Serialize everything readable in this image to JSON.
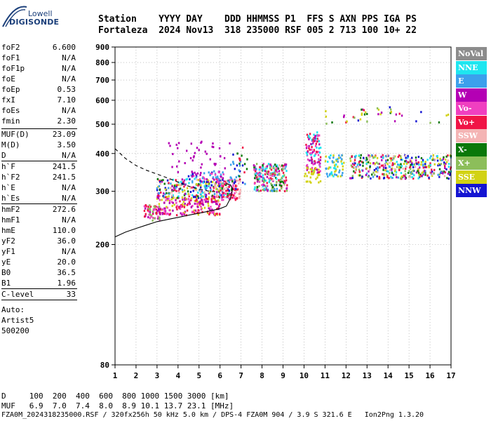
{
  "logo": {
    "top_text": "Lowell",
    "bottom_text": "DIGISONDE"
  },
  "header": {
    "line1": "Station    YYYY DAY    DDD HHMMSS P1  FFS S AXN PPS IGA PS",
    "line2": "Fortaleza  2024 Nov13  318 235000 RSF 005 2 713 100 10+ 22"
  },
  "parameters": {
    "group1": [
      {
        "name": "foF2",
        "value": "6.600"
      },
      {
        "name": "foF1",
        "value": "N/A"
      },
      {
        "name": "foF1p",
        "value": "N/A"
      },
      {
        "name": "foE",
        "value": "N/A"
      },
      {
        "name": "foEp",
        "value": "0.53"
      },
      {
        "name": "fxI",
        "value": "7.10"
      },
      {
        "name": "foEs",
        "value": "N/A"
      },
      {
        "name": "fmin",
        "value": "2.30"
      }
    ],
    "group2": [
      {
        "name": "MUF(D)",
        "value": "23.09"
      },
      {
        "name": "M(D)",
        "value": "3.50"
      },
      {
        "name": "D",
        "value": "N/A"
      }
    ],
    "group3": [
      {
        "name": "h`F",
        "value": "241.5"
      },
      {
        "name": "h`F2",
        "value": "241.5"
      },
      {
        "name": "h`E",
        "value": "N/A"
      },
      {
        "name": "h`Es",
        "value": "N/A"
      }
    ],
    "group4": [
      {
        "name": "hmF2",
        "value": "272.6"
      },
      {
        "name": "hmF1",
        "value": "N/A"
      },
      {
        "name": "hmE",
        "value": "110.0"
      },
      {
        "name": "yF2",
        "value": "36.0"
      },
      {
        "name": "yF1",
        "value": "N/A"
      },
      {
        "name": "yE",
        "value": "20.0"
      },
      {
        "name": "B0",
        "value": "36.5"
      },
      {
        "name": "B1",
        "value": "1.96"
      }
    ],
    "group5": [
      {
        "name": "C-level",
        "value": "33"
      }
    ],
    "autoscale": {
      "line1": "Auto:",
      "line2": "Artist5",
      "line3": "500200"
    }
  },
  "legend": [
    {
      "label": "NoVal",
      "bg": "#8c8c8c",
      "fg": "#ffffff"
    },
    {
      "label": "NNE",
      "bg": "#1ee6f0",
      "fg": "#ffffff"
    },
    {
      "label": "E",
      "bg": "#3ca0ec",
      "fg": "#ffffff"
    },
    {
      "label": "W",
      "bg": "#b400b4",
      "fg": "#ffffff"
    },
    {
      "label": "Vo-",
      "bg": "#f040c0",
      "fg": "#ffffff"
    },
    {
      "label": "Vo+",
      "bg": "#f01446",
      "fg": "#ffffff"
    },
    {
      "label": "SSW",
      "bg": "#f4b4b4",
      "fg": "#ffffff"
    },
    {
      "label": "X-",
      "bg": "#0a780a",
      "fg": "#ffffff"
    },
    {
      "label": "X+",
      "bg": "#8cbe5a",
      "fg": "#ffffff"
    },
    {
      "label": "SSE",
      "bg": "#d2d214",
      "fg": "#ffffff"
    },
    {
      "label": "NNW",
      "bg": "#1414d2",
      "fg": "#ffffff"
    }
  ],
  "chart_data": {
    "type": "scatter",
    "title": "",
    "xlabel": "",
    "ylabel": "",
    "xlim": [
      1,
      17
    ],
    "ylim": [
      80,
      900
    ],
    "x_ticks": [
      "1",
      "2",
      "3",
      "4",
      "5",
      "6",
      "7",
      "8",
      "9",
      "10",
      "11",
      "12",
      "13",
      "14",
      "15",
      "16",
      "17"
    ],
    "y_ticks": [
      "80",
      "200",
      "300",
      "400",
      "500",
      "600",
      "700",
      "800",
      "900"
    ],
    "y_tick_values": [
      80,
      200,
      300,
      400,
      500,
      600,
      700,
      800,
      900
    ],
    "grid": "dotted",
    "clusters": [
      {
        "x": [
          2.4,
          3.2
        ],
        "y": [
          240,
          270
        ],
        "n": 60,
        "colors": [
          "Vo+",
          "Vo-",
          "W",
          "X+"
        ]
      },
      {
        "x": [
          3.0,
          6.0
        ],
        "y": [
          250,
          290
        ],
        "n": 220,
        "colors": [
          "Vo+",
          "Vo-",
          "W",
          "SSE"
        ]
      },
      {
        "x": [
          3.0,
          6.5
        ],
        "y": [
          285,
          330
        ],
        "n": 260,
        "colors": [
          "SSE",
          "E",
          "NNE",
          "NNW",
          "Vo+",
          "W",
          "X-",
          "SSW"
        ]
      },
      {
        "x": [
          4.5,
          6.2
        ],
        "y": [
          320,
          350
        ],
        "n": 60,
        "colors": [
          "Vo-",
          "NNW",
          "W",
          "E"
        ]
      },
      {
        "x": [
          3.5,
          6.5
        ],
        "y": [
          340,
          440
        ],
        "n": 40,
        "colors": [
          "W"
        ]
      },
      {
        "x": [
          6.0,
          7.0
        ],
        "y": [
          280,
          330
        ],
        "n": 70,
        "colors": [
          "Vo+",
          "Vo-",
          "SSW"
        ]
      },
      {
        "x": [
          6.5,
          7.3
        ],
        "y": [
          300,
          420
        ],
        "n": 40,
        "colors": [
          "Vo+",
          "X-",
          "E",
          "NNW"
        ]
      },
      {
        "x": [
          7.6,
          9.2
        ],
        "y": [
          300,
          370
        ],
        "n": 240,
        "colors": [
          "Vo+",
          "Vo-",
          "SSW",
          "W",
          "E",
          "NNE",
          "X+",
          "X-"
        ]
      },
      {
        "x": [
          10.1,
          10.8
        ],
        "y": [
          345,
          470
        ],
        "n": 110,
        "colors": [
          "Vo+",
          "Vo-",
          "NNE",
          "W"
        ]
      },
      {
        "x": [
          10.0,
          10.8
        ],
        "y": [
          320,
          360
        ],
        "n": 30,
        "colors": [
          "SSE"
        ]
      },
      {
        "x": [
          11.0,
          11.9
        ],
        "y": [
          335,
          395
        ],
        "n": 60,
        "colors": [
          "NNE",
          "SSE",
          "E"
        ]
      },
      {
        "x": [
          12.2,
          17.0
        ],
        "y": [
          330,
          395
        ],
        "n": 400,
        "colors": [
          "NNE",
          "E",
          "SSW",
          "W",
          "X+",
          "SSE",
          "Vo+",
          "NNW",
          "X-"
        ]
      },
      {
        "x": [
          11.0,
          16.9
        ],
        "y": [
          500,
          570
        ],
        "n": 40,
        "colors": [
          "X-",
          "Vo+",
          "SSE",
          "X+",
          "W",
          "NNW"
        ]
      }
    ],
    "curves": {
      "dashed": [
        [
          1.0,
          415
        ],
        [
          1.5,
          385
        ],
        [
          2.0,
          365
        ],
        [
          2.5,
          352
        ],
        [
          3.0,
          342
        ],
        [
          3.5,
          332
        ],
        [
          4.0,
          322
        ],
        [
          4.5,
          312
        ],
        [
          5.0,
          305
        ],
        [
          5.5,
          300
        ],
        [
          6.0,
          298
        ]
      ],
      "solid": [
        [
          1.0,
          212
        ],
        [
          1.5,
          220
        ],
        [
          2.0,
          226
        ],
        [
          2.5,
          232
        ],
        [
          3.0,
          238
        ],
        [
          3.5,
          242
        ],
        [
          4.0,
          246
        ],
        [
          4.5,
          250
        ],
        [
          5.0,
          254
        ],
        [
          5.5,
          258
        ],
        [
          6.0,
          263
        ],
        [
          6.3,
          268
        ],
        [
          6.5,
          285
        ],
        [
          6.6,
          305
        ],
        [
          6.5,
          315
        ],
        [
          6.3,
          318
        ]
      ]
    }
  },
  "footer": {
    "line1": "D     100  200  400  600  800 1000 1500 3000 [km]",
    "line2": "MUF   6.9  7.0  7.4  8.0  8.9 10.1 13.7 23.1 [MHz]",
    "line3": "FZA0M_2024318235000.RSF / 320fx256h 50 kHz 5.0 km / DPS-4 FZA0M 904 / 3.9 S 321.6 E   Ion2Png 1.3.20"
  }
}
